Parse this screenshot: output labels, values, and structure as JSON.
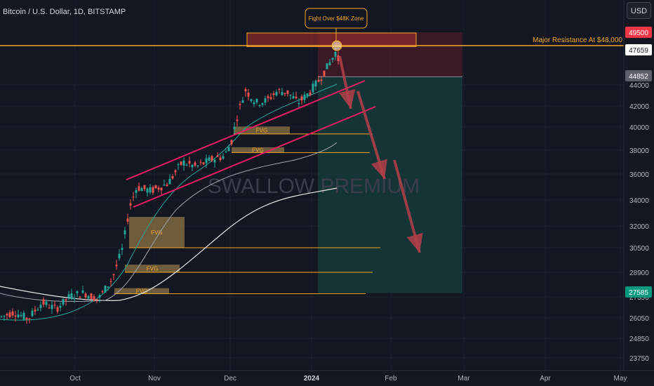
{
  "header": {
    "symbol_title": "Bitcoin / U.S. Dollar, 1D, BITSTAMP",
    "currency_button": "USD"
  },
  "watermark": "SWALLOW PREMIUM",
  "annotations": {
    "callout": "Fight Over $48K Zone",
    "resistance_label": "Major Resistance At $48,000",
    "fvg_label": "FVG"
  },
  "colors": {
    "background": "#131722",
    "up": "#26a69a",
    "down": "#ef5350",
    "resistance": "#f5a623",
    "channel": "#e91e63",
    "arrow": "#b2404a",
    "short_zone": "#5c1e2c",
    "target_zone": "#153a38"
  },
  "chart_data": {
    "type": "candlestick",
    "x_ticks": [
      "Oct",
      "Nov",
      "Dec",
      "2024",
      "Feb",
      "Mar",
      "Apr",
      "May"
    ],
    "y_ticks": [
      23750,
      24850,
      26050,
      27350,
      28900,
      30500,
      32000,
      34000,
      36000,
      38000,
      40000,
      42000,
      44000
    ],
    "price_badges": [
      {
        "value": "49500",
        "color": "#f23645"
      },
      {
        "value": "47659",
        "color": "#ffffff"
      },
      {
        "value": "44852",
        "color": "#5d606b"
      },
      {
        "value": "27585",
        "color": "#089981"
      }
    ],
    "fvg_zones": [
      {
        "top": 32700,
        "bottom": 30500,
        "line_at": 30500
      },
      {
        "top": 29400,
        "bottom": 28900,
        "line_at": 28900
      },
      {
        "top": 27900,
        "bottom": 27550,
        "line_at": 27550
      },
      {
        "top": 40050,
        "bottom": 39400,
        "line_at": 39400
      },
      {
        "top": 38250,
        "bottom": 37800,
        "line_at": 37800
      }
    ],
    "resistance_level": 48000,
    "trade": {
      "stop": 49500,
      "entry": 44852,
      "target": 27585
    }
  }
}
